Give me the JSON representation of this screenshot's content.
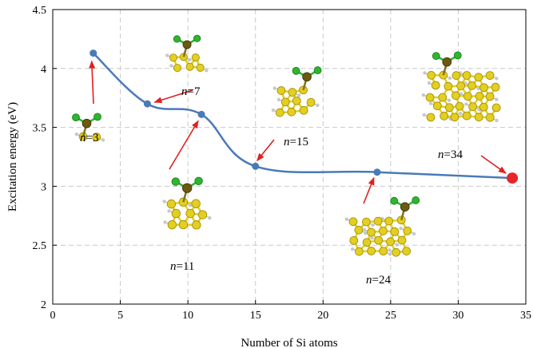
{
  "chart_data": {
    "type": "line",
    "xlabel": "Number of Si atoms",
    "ylabel": "Excitation energy (eV)",
    "xlim": [
      0,
      35
    ],
    "ylim": [
      2,
      4.5
    ],
    "xticks": [
      0,
      5,
      10,
      15,
      20,
      25,
      30,
      35
    ],
    "yticks": [
      2,
      2.5,
      3,
      3.5,
      4,
      4.5
    ],
    "xtick_labels": [
      "0",
      "5",
      "10",
      "15",
      "20",
      "25",
      "30",
      "35"
    ],
    "ytick_labels": [
      "2",
      "2.5",
      "3",
      "3.5",
      "4",
      "4.5"
    ],
    "grid": true,
    "line_color": "#4a7ab8",
    "highlight_color": "#e8262a",
    "arrow_color": "#e02020",
    "series": [
      {
        "x": [
          3,
          7,
          11,
          15,
          24,
          34
        ],
        "values": [
          4.13,
          3.7,
          3.61,
          3.17,
          3.12,
          3.07
        ],
        "highlight_last": true
      }
    ],
    "annotations": [
      {
        "text": "n=3",
        "var": "n",
        "value": "3"
      },
      {
        "text": "n=7",
        "var": "n",
        "value": "7"
      },
      {
        "text": "n=11",
        "var": "n",
        "value": "11"
      },
      {
        "text": "n=15",
        "var": "n",
        "value": "15"
      },
      {
        "text": "n=24",
        "var": "n",
        "value": "24"
      },
      {
        "text": "n=34",
        "var": "n",
        "value": "34"
      }
    ],
    "molecule_colors": {
      "si": "#e3cf22",
      "si_dark": "#a08a00",
      "cl": "#2fb52f",
      "cl_dark": "#157a15",
      "center": "#6b5a10",
      "h": "#c8c8c8"
    }
  }
}
